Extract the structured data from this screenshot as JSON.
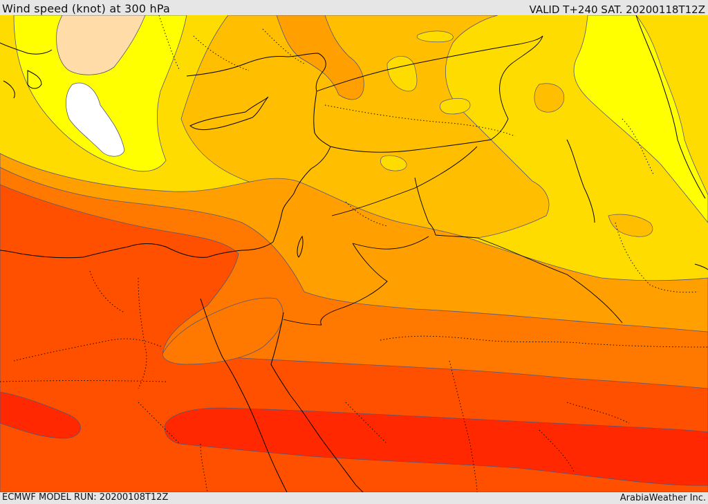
{
  "header": {
    "title": "Wind speed (knot) at 300 hPa",
    "valid": "VALID T+240 SAT. 20200118T12Z"
  },
  "footer": {
    "model_run": "ECMWF MODEL RUN: 20200108T12Z",
    "credit": "ArabiaWeather Inc."
  },
  "map": {
    "variable": "wind-speed",
    "level_hpa": 300,
    "colors": {
      "white": "#ffffff",
      "peach": "#ffdca8",
      "bright_yellow": "#ffff00",
      "gold": "#ffdc00",
      "amber": "#ffbe00",
      "orange": "#ffa000",
      "dark_orange": "#ff7800",
      "orange_red": "#ff5000",
      "red": "#ff2800",
      "contour": "#555577",
      "coast": "#000000"
    }
  }
}
